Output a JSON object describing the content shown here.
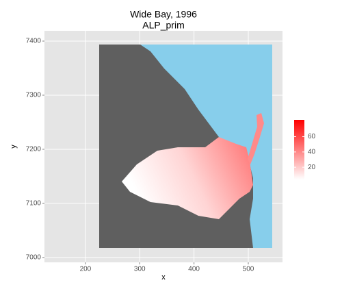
{
  "chart_data": {
    "type": "raster",
    "title": "Wide Bay, 1996",
    "subtitle": "ALP_prim",
    "x_label": "x",
    "y_label": "y",
    "xlim": [
      124.5,
      563
    ],
    "xticks": [
      200,
      300,
      400,
      500
    ],
    "ylim": [
      6991,
      7419
    ],
    "yticks": [
      7000,
      7100,
      7200,
      7300,
      7400
    ],
    "grid": true,
    "legend": {
      "position": "right",
      "clim": [
        4,
        82
      ],
      "ticks": [
        20,
        40,
        60
      ],
      "low_color": "#ffffff",
      "high_color": "#ff0000"
    }
  }
}
